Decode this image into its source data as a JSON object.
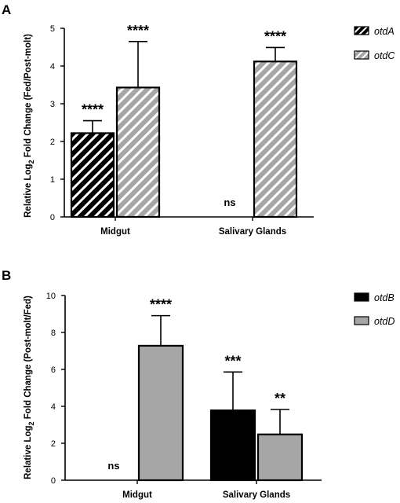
{
  "chart_data": [
    {
      "panel": "A",
      "type": "bar",
      "ylabel_pre": "Relative Log",
      "ylabel_sub": "2",
      "ylabel_post": " Fold Change (Fed/Post-molt)",
      "ylim": [
        0,
        5
      ],
      "yticks": [
        "0",
        "1",
        "2",
        "3",
        "4",
        "5"
      ],
      "categories": [
        "Midgut",
        "Salivary Glands"
      ],
      "legend_position": "right",
      "series": [
        {
          "name": "otdA",
          "values": [
            2.22,
            0
          ],
          "errors": [
            0.33,
            0
          ],
          "labels": [
            "****",
            "ns"
          ],
          "fill": "hatch-dark"
        },
        {
          "name": "otdC",
          "values": [
            3.43,
            4.12
          ],
          "errors": [
            1.22,
            0.37
          ],
          "labels": [
            "****",
            "****"
          ],
          "fill": "hatch-grey"
        }
      ]
    },
    {
      "panel": "B",
      "type": "bar",
      "ylabel_pre": "Relative Log",
      "ylabel_sub": "2",
      "ylabel_post": " Fold Change (Post-molt/Fed)",
      "ylim": [
        0,
        10
      ],
      "yticks": [
        "0",
        "2",
        "4",
        "6",
        "8",
        "10"
      ],
      "categories": [
        "Midgut",
        "Salivary Glands"
      ],
      "legend_position": "right",
      "series": [
        {
          "name": "otdB",
          "values": [
            0,
            3.78
          ],
          "errors": [
            0,
            2.08
          ],
          "labels": [
            "ns",
            "***"
          ],
          "fill": "black"
        },
        {
          "name": "otdD",
          "values": [
            7.28,
            2.48
          ],
          "errors": [
            1.63,
            1.35
          ],
          "labels": [
            "****",
            "**"
          ],
          "fill": "grey"
        }
      ]
    }
  ],
  "colors": {
    "dark_bar": "#000000",
    "grey_bar": "#a6a6a6",
    "hatch_line": "#ffffff"
  }
}
